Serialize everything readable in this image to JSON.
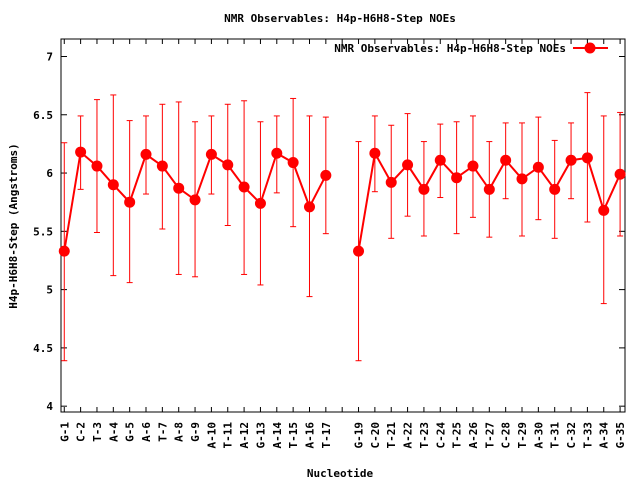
{
  "chart_data": {
    "type": "line",
    "title": "NMR Observables: H4p-H6H8-Step NOEs",
    "xlabel": "Nucleotide",
    "ylabel": "H4p-H6H8-Step (Angstroms)",
    "ylim": [
      3.95,
      7.15
    ],
    "yticks": [
      4,
      4.5,
      5,
      5.5,
      6,
      6.5,
      7
    ],
    "ytick_labels": [
      "4",
      "4.5",
      "5",
      "5.5",
      "6",
      "6.5",
      "7"
    ],
    "grid": false,
    "legend": {
      "position": "top-right",
      "label": "NMR Observables: H4p-H6H8-Step NOEs"
    },
    "color": "#ff0000",
    "x_range": [
      0.8,
      35.3
    ],
    "categories": [
      "G-1",
      "C-2",
      "T-3",
      "A-4",
      "G-5",
      "A-6",
      "T-7",
      "A-8",
      "G-9",
      "A-10",
      "T-11",
      "A-12",
      "G-13",
      "A-14",
      "T-15",
      "A-16",
      "T-17",
      "",
      "G-19",
      "C-20",
      "T-21",
      "A-22",
      "T-23",
      "C-24",
      "T-25",
      "A-26",
      "T-27",
      "C-28",
      "T-29",
      "A-30",
      "T-31",
      "C-32",
      "T-33",
      "A-34",
      "G-35"
    ],
    "series": [
      {
        "name": "NMR Observables: H4p-H6H8-Step NOEs",
        "x": [
          1,
          2,
          3,
          4,
          5,
          6,
          7,
          8,
          9,
          10,
          11,
          12,
          13,
          14,
          15,
          16,
          17,
          19,
          20,
          21,
          22,
          23,
          24,
          25,
          26,
          27,
          28,
          29,
          30,
          31,
          32,
          33,
          34,
          35
        ],
        "y": [
          5.33,
          6.18,
          6.06,
          5.9,
          5.75,
          6.16,
          6.06,
          5.87,
          5.77,
          6.16,
          6.07,
          5.88,
          5.74,
          6.17,
          6.09,
          5.71,
          5.98,
          5.33,
          6.17,
          5.92,
          6.07,
          5.86,
          6.11,
          5.96,
          6.06,
          5.86,
          6.11,
          5.95,
          6.05,
          5.86,
          6.11,
          6.13,
          5.68,
          5.99
        ],
        "err_low": [
          4.39,
          5.86,
          5.49,
          5.12,
          5.06,
          5.82,
          5.52,
          5.13,
          5.11,
          5.82,
          5.55,
          5.13,
          5.04,
          5.83,
          5.54,
          4.94,
          5.48,
          4.39,
          5.84,
          5.44,
          5.63,
          5.46,
          5.79,
          5.48,
          5.62,
          5.45,
          5.78,
          5.46,
          5.6,
          5.44,
          5.78,
          5.58,
          4.88,
          5.46
        ],
        "err_high": [
          6.26,
          6.49,
          6.63,
          6.67,
          6.45,
          6.49,
          6.59,
          6.61,
          6.44,
          6.49,
          6.59,
          6.62,
          6.44,
          6.49,
          6.64,
          6.49,
          6.48,
          6.27,
          6.49,
          6.41,
          6.51,
          6.27,
          6.42,
          6.44,
          6.49,
          6.27,
          6.43,
          6.43,
          6.48,
          6.28,
          6.43,
          6.69,
          6.49,
          6.52
        ]
      }
    ]
  }
}
